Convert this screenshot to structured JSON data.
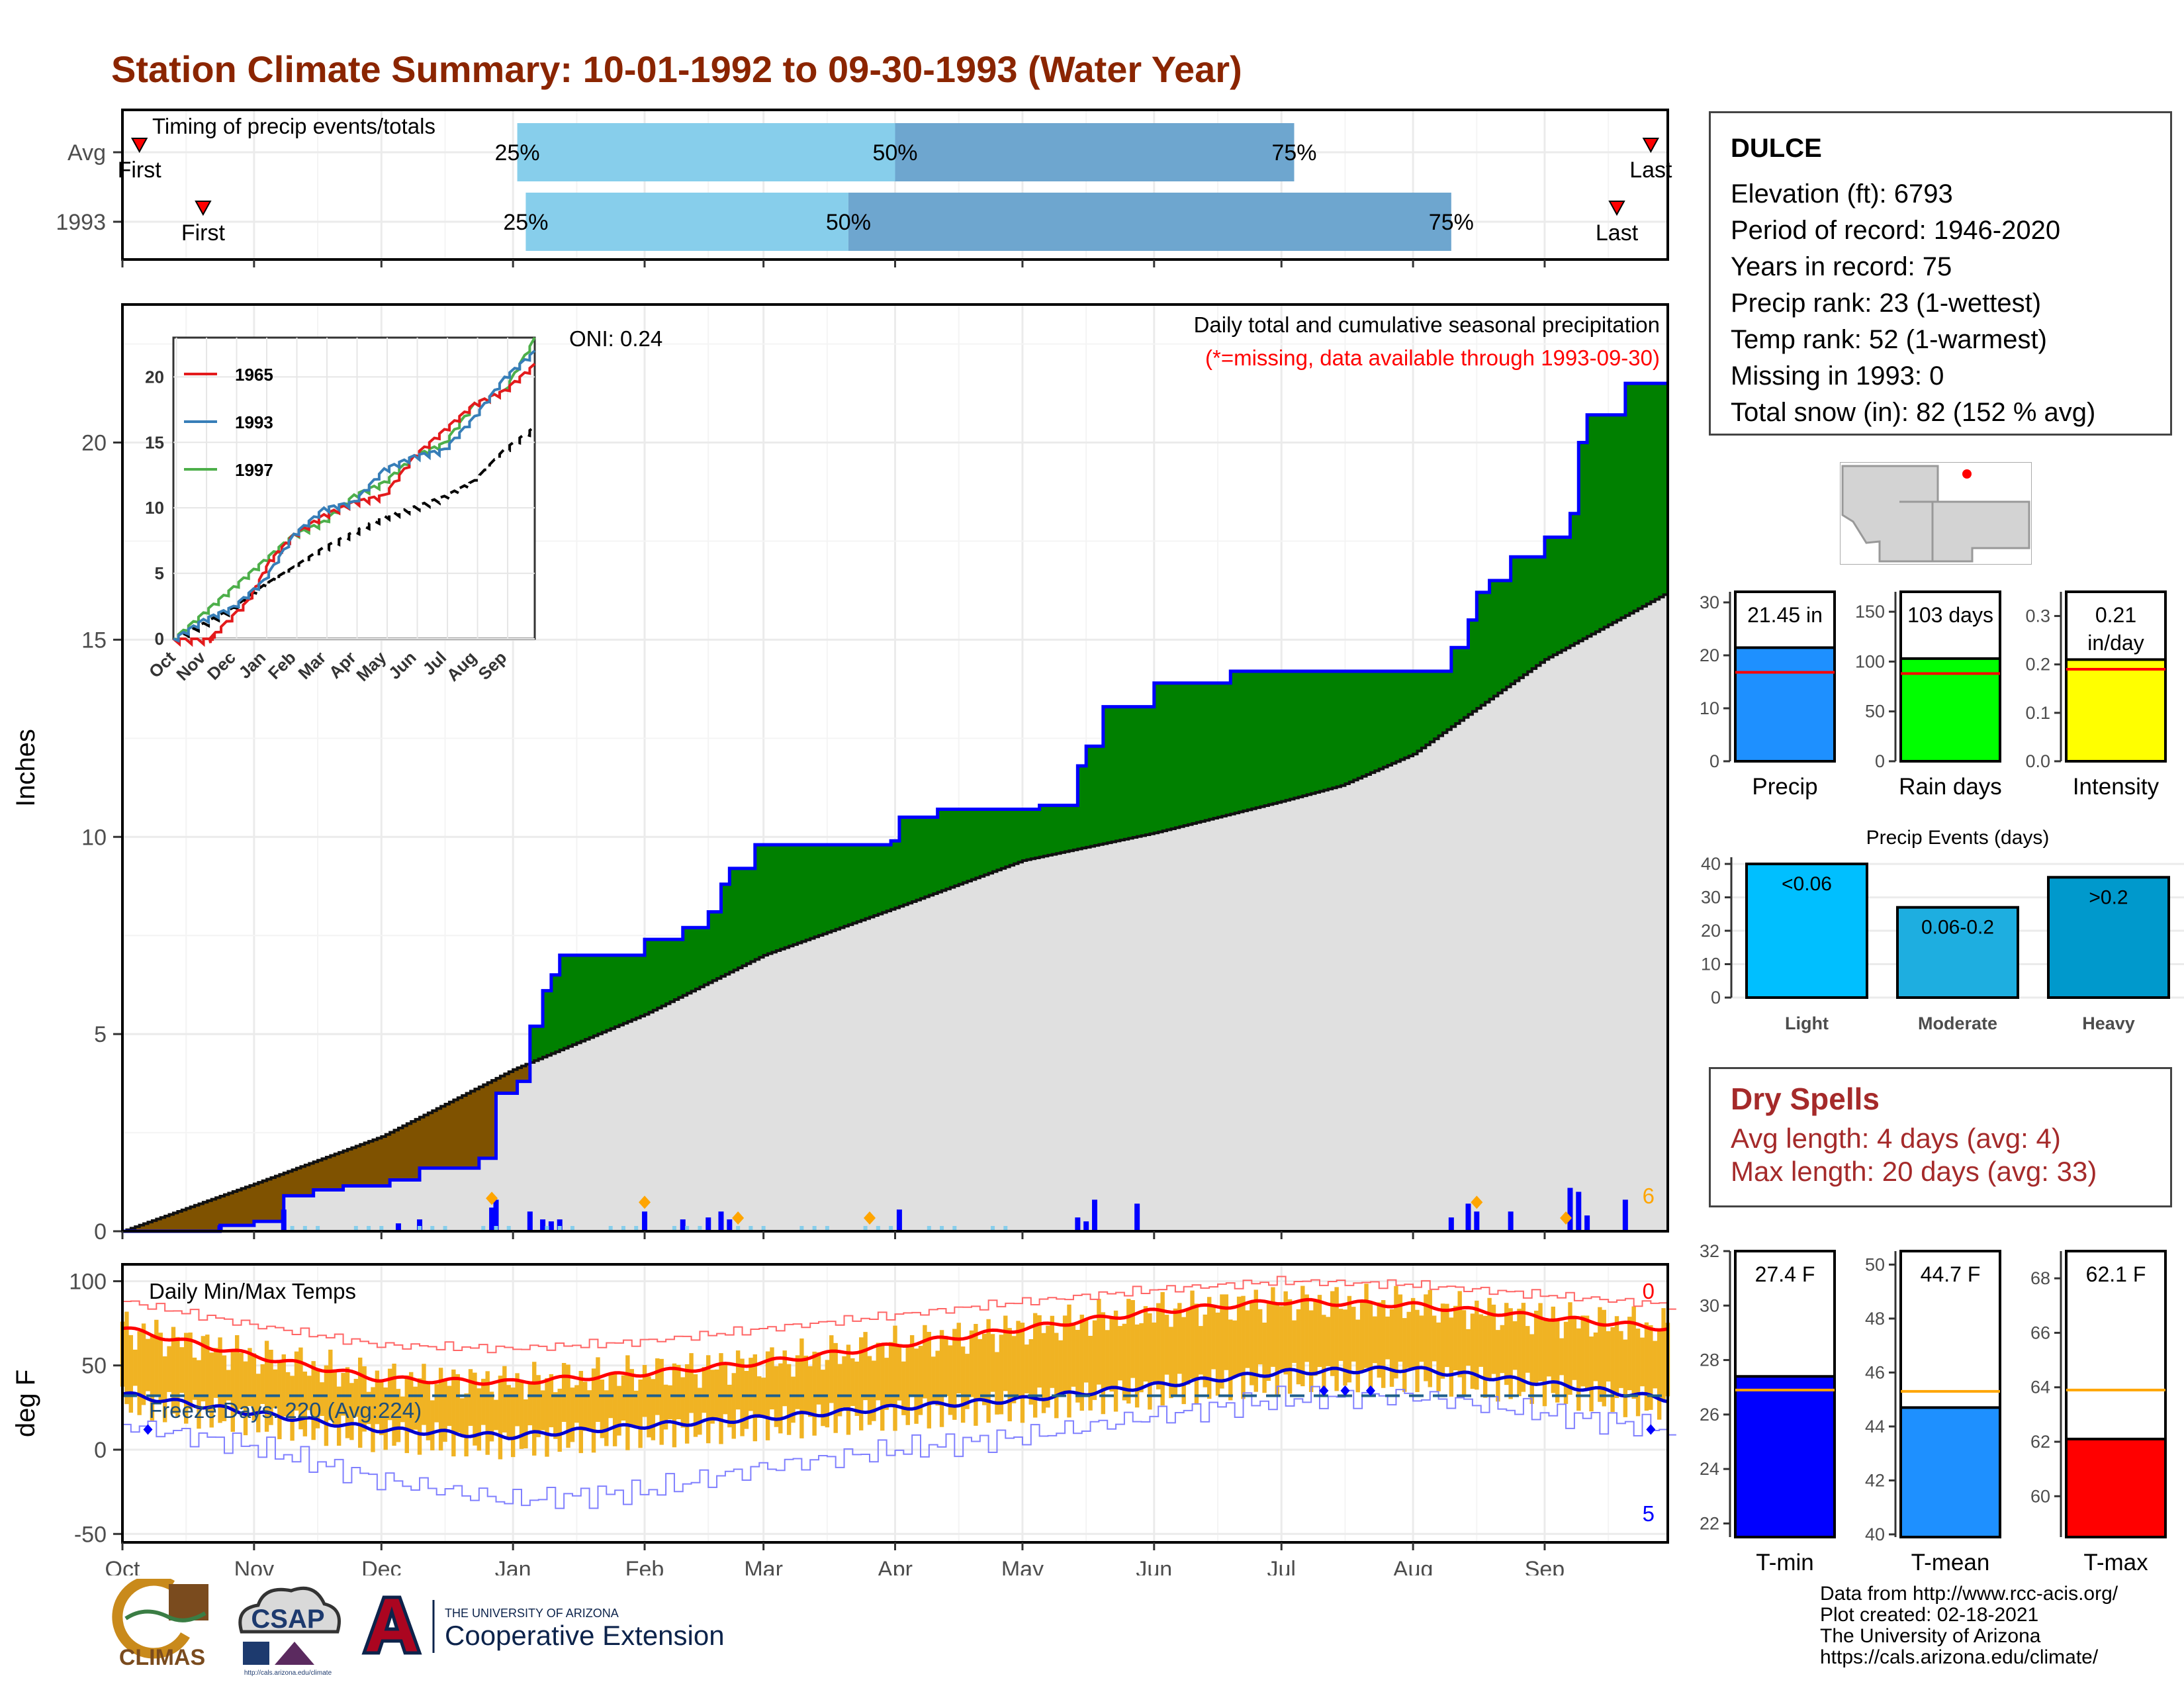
{
  "title": "Station Climate Summary: 10-01-1992 to 09-30-1993 (Water Year)",
  "station": {
    "name": "DULCE",
    "lines": [
      "Elevation (ft): 6793",
      "Period of record: 1946-2020",
      "Years in record: 75",
      "Precip rank: 23 (1-wettest)",
      "Temp rank: 52 (1-warmest)",
      "Missing in 1993: 0",
      "Total snow (in): 82 (152 % avg)"
    ]
  },
  "dry_spells": {
    "title": "Dry Spells",
    "avg": "Avg length: 4 days (avg: 4)",
    "max": "Max length: 20 days (avg: 33)"
  },
  "credits": [
    "Data from http://www.rcc-acis.org/",
    "Plot created: 02-18-2021",
    "The University of Arizona",
    "https://cals.arizona.edu/climate/"
  ],
  "logos": {
    "climas": "CLIMAS",
    "csap": "CSAP",
    "csap_url": "http://cals.arizona.edu/climate",
    "ua_small": "THE UNIVERSITY OF ARIZONA",
    "ua_big": "Cooperative Extension"
  },
  "colors": {
    "title": "#8b2500",
    "wet": "#008000",
    "dry": "#7f5200",
    "avg_fill": "#e0e0e0",
    "cum_line": "#0000ff",
    "tmax": "#ff0000",
    "tmin": "#0000cd",
    "temp_bar": "#f0b323",
    "timing_light": "#87ceeb",
    "timing_dark": "#6ea6cf"
  },
  "chart_data": [
    {
      "type": "timeline",
      "name": "timing",
      "title": "Timing of precip events/totals",
      "rows": [
        {
          "label": "Avg",
          "first": "10-05",
          "p25": "01-02",
          "p50": "04-01",
          "p75": "07-04",
          "last": "09-26"
        },
        {
          "label": "1993",
          "first": "10-20",
          "p25": "01-04",
          "p50": "03-21",
          "p75": "08-10",
          "last": "09-18"
        }
      ],
      "marker_labels": {
        "first": "First",
        "last": "Last",
        "p25": "25%",
        "p50": "50%",
        "p75": "75%"
      }
    },
    {
      "type": "area",
      "name": "cumulative_precip",
      "title": "Daily total and cumulative seasonal precipitation",
      "subtitle": "(*=missing, data available through 1993-09-30)",
      "oni": "ONI: 0.24",
      "ylabel": "Inches",
      "ylim": [
        0,
        23.5
      ],
      "yticks": [
        0,
        5,
        10,
        15,
        20
      ],
      "xlim": [
        "1992-10-01",
        "1993-09-30"
      ],
      "corner_count": "6",
      "cumulative_1993": [
        [
          "1992-10-01",
          0
        ],
        [
          "1992-10-24",
          0.15
        ],
        [
          "1992-11-01",
          0.25
        ],
        [
          "1992-11-08",
          0.9
        ],
        [
          "1992-11-15",
          1.05
        ],
        [
          "1992-11-22",
          1.15
        ],
        [
          "1992-12-03",
          1.3
        ],
        [
          "1992-12-10",
          1.6
        ],
        [
          "1992-12-24",
          1.85
        ],
        [
          "1992-12-28",
          3.5
        ],
        [
          "1993-01-02",
          3.8
        ],
        [
          "1993-01-05",
          5.2
        ],
        [
          "1993-01-08",
          6.1
        ],
        [
          "1993-01-10",
          6.5
        ],
        [
          "1993-01-12",
          7.0
        ],
        [
          "1993-01-31",
          7.0
        ],
        [
          "1993-02-01",
          7.4
        ],
        [
          "1993-02-10",
          7.7
        ],
        [
          "1993-02-16",
          8.1
        ],
        [
          "1993-02-19",
          8.8
        ],
        [
          "1993-02-21",
          9.2
        ],
        [
          "1993-02-27",
          9.8
        ],
        [
          "1993-03-31",
          9.9
        ],
        [
          "1993-04-02",
          10.5
        ],
        [
          "1993-04-11",
          10.7
        ],
        [
          "1993-05-05",
          10.8
        ],
        [
          "1993-05-14",
          11.8
        ],
        [
          "1993-05-16",
          12.3
        ],
        [
          "1993-05-20",
          13.3
        ],
        [
          "1993-06-01",
          13.9
        ],
        [
          "1993-06-19",
          14.2
        ],
        [
          "1993-08-06",
          14.2
        ],
        [
          "1993-08-10",
          14.8
        ],
        [
          "1993-08-14",
          15.5
        ],
        [
          "1993-08-16",
          16.2
        ],
        [
          "1993-08-19",
          16.5
        ],
        [
          "1993-08-24",
          17.1
        ],
        [
          "1993-09-01",
          17.6
        ],
        [
          "1993-09-07",
          18.2
        ],
        [
          "1993-09-09",
          20.0
        ],
        [
          "1993-09-11",
          20.7
        ],
        [
          "1993-09-20",
          21.5
        ],
        [
          "1993-09-30",
          21.5
        ]
      ],
      "cumulative_avg": [
        [
          "1992-10-01",
          0
        ],
        [
          "1992-11-01",
          1.2
        ],
        [
          "1992-12-01",
          2.4
        ],
        [
          "1993-01-01",
          4.1
        ],
        [
          "1993-02-01",
          5.5
        ],
        [
          "1993-03-01",
          7.0
        ],
        [
          "1993-04-01",
          8.2
        ],
        [
          "1993-05-01",
          9.4
        ],
        [
          "1993-06-01",
          10.1
        ],
        [
          "1993-07-01",
          10.9
        ],
        [
          "1993-07-15",
          11.3
        ],
        [
          "1993-08-01",
          12.1
        ],
        [
          "1993-09-01",
          14.5
        ],
        [
          "1993-09-30",
          16.2
        ]
      ],
      "daily_precip": [
        [
          "1992-10-24",
          0.15
        ],
        [
          "1992-11-08",
          0.55
        ],
        [
          "1992-12-05",
          0.2
        ],
        [
          "1992-12-10",
          0.3
        ],
        [
          "1992-12-27",
          0.6
        ],
        [
          "1992-12-28",
          0.8
        ],
        [
          "1993-01-05",
          0.5
        ],
        [
          "1993-01-08",
          0.3
        ],
        [
          "1993-01-10",
          0.25
        ],
        [
          "1993-01-12",
          0.3
        ],
        [
          "1993-02-01",
          0.5
        ],
        [
          "1993-02-10",
          0.3
        ],
        [
          "1993-02-16",
          0.35
        ],
        [
          "1993-02-19",
          0.5
        ],
        [
          "1993-02-21",
          0.3
        ],
        [
          "1993-04-02",
          0.55
        ],
        [
          "1993-05-14",
          0.35
        ],
        [
          "1993-05-16",
          0.25
        ],
        [
          "1993-05-18",
          0.8
        ],
        [
          "1993-05-28",
          0.7
        ],
        [
          "1993-08-10",
          0.35
        ],
        [
          "1993-08-14",
          0.7
        ],
        [
          "1993-08-16",
          0.5
        ],
        [
          "1993-08-24",
          0.5
        ],
        [
          "1993-09-07",
          1.1
        ],
        [
          "1993-09-09",
          1.0
        ],
        [
          "1993-09-11",
          0.4
        ],
        [
          "1993-09-20",
          0.8
        ]
      ],
      "record_markers": [
        "1992-12-27",
        "1993-02-01",
        "1993-02-23",
        "1993-03-26",
        "1993-08-16",
        "1993-09-06"
      ]
    },
    {
      "type": "line",
      "name": "cumulative_inset",
      "series": [
        {
          "name": "1965",
          "color": "#e31a1c"
        },
        {
          "name": "1993",
          "color": "#377eb8"
        },
        {
          "name": "1997",
          "color": "#4daf4a"
        }
      ],
      "ylim": [
        0,
        23
      ],
      "yticks": [
        0,
        5,
        10,
        15,
        20
      ],
      "xticks": [
        "Oct",
        "Nov",
        "Dec",
        "Jan",
        "Feb",
        "Mar",
        "Apr",
        "May",
        "Jun",
        "Jul",
        "Aug",
        "Sep"
      ],
      "series_1965": [
        [
          0,
          0
        ],
        [
          1.2,
          0
        ],
        [
          1.4,
          0.5
        ],
        [
          2.5,
          3
        ],
        [
          3.2,
          6
        ],
        [
          4,
          8
        ],
        [
          5,
          9.5
        ],
        [
          6,
          10.5
        ],
        [
          7,
          11
        ],
        [
          8,
          14
        ],
        [
          9,
          16
        ],
        [
          10,
          18
        ],
        [
          11,
          19
        ],
        [
          12,
          21
        ]
      ],
      "series_1993": [
        [
          0,
          0
        ],
        [
          1,
          1.5
        ],
        [
          2,
          2.5
        ],
        [
          3,
          4.5
        ],
        [
          4,
          8
        ],
        [
          5,
          10
        ],
        [
          6,
          10.5
        ],
        [
          7,
          13
        ],
        [
          8,
          14
        ],
        [
          9,
          14.5
        ],
        [
          10,
          17
        ],
        [
          11,
          20
        ],
        [
          12,
          22
        ]
      ],
      "series_1997": [
        [
          0,
          0
        ],
        [
          1,
          2
        ],
        [
          2,
          4
        ],
        [
          3,
          6
        ],
        [
          4,
          8
        ],
        [
          5,
          9
        ],
        [
          6,
          11
        ],
        [
          7,
          12
        ],
        [
          8,
          14
        ],
        [
          9,
          15
        ],
        [
          10,
          18
        ],
        [
          11,
          19
        ],
        [
          12,
          23
        ]
      ],
      "series_avg": [
        [
          0,
          0
        ],
        [
          1,
          1.2
        ],
        [
          2,
          2.4
        ],
        [
          3,
          4.1
        ],
        [
          4,
          5.5
        ],
        [
          5,
          7
        ],
        [
          6,
          8.2
        ],
        [
          7,
          9.4
        ],
        [
          8,
          10.1
        ],
        [
          9,
          10.9
        ],
        [
          10,
          12.1
        ],
        [
          11,
          14.5
        ],
        [
          12,
          16.2
        ]
      ]
    },
    {
      "type": "line",
      "name": "daily_temps",
      "title": "Daily Min/Max Temps",
      "ylabel": "deg F",
      "ylim": [
        -55,
        110
      ],
      "yticks": [
        -50,
        0,
        50,
        100
      ],
      "xticks": [
        "Oct",
        "Nov",
        "Dec",
        "Jan",
        "Feb",
        "Mar",
        "Apr",
        "May",
        "Jun",
        "Jul",
        "Aug",
        "Sep"
      ],
      "freeze_label": "Freeze Days: 220 (Avg:224)",
      "freeze_line": 32,
      "count_top": "0",
      "count_bottom": "5",
      "avg_max": [
        [
          0,
          72
        ],
        [
          1,
          56
        ],
        [
          2,
          42
        ],
        [
          3,
          40
        ],
        [
          4,
          45
        ],
        [
          5,
          52
        ],
        [
          6,
          62
        ],
        [
          7,
          72
        ],
        [
          8,
          82
        ],
        [
          9,
          88
        ],
        [
          10,
          86
        ],
        [
          11,
          79
        ],
        [
          12,
          72
        ]
      ],
      "avg_min": [
        [
          0,
          33
        ],
        [
          1,
          22
        ],
        [
          2,
          12
        ],
        [
          3,
          8
        ],
        [
          4,
          14
        ],
        [
          5,
          19
        ],
        [
          6,
          25
        ],
        [
          7,
          30
        ],
        [
          8,
          38
        ],
        [
          9,
          46
        ],
        [
          10,
          48
        ],
        [
          11,
          40
        ],
        [
          12,
          30
        ]
      ],
      "record_max": [
        [
          0,
          88
        ],
        [
          1,
          74
        ],
        [
          2,
          62
        ],
        [
          3,
          60
        ],
        [
          4,
          64
        ],
        [
          5,
          72
        ],
        [
          6,
          80
        ],
        [
          7,
          88
        ],
        [
          8,
          95
        ],
        [
          9,
          100
        ],
        [
          10,
          98
        ],
        [
          11,
          92
        ],
        [
          12,
          86
        ]
      ],
      "record_min": [
        [
          0,
          15
        ],
        [
          1,
          2
        ],
        [
          2,
          -18
        ],
        [
          3,
          -30
        ],
        [
          4,
          -25
        ],
        [
          5,
          -10
        ],
        [
          6,
          0
        ],
        [
          7,
          8
        ],
        [
          8,
          20
        ],
        [
          9,
          30
        ],
        [
          10,
          32
        ],
        [
          11,
          22
        ],
        [
          12,
          12
        ]
      ]
    },
    {
      "type": "bar",
      "name": "precip_summary",
      "panels": [
        {
          "label": "Precip",
          "value": 21.45,
          "avg": 16.8,
          "ylim": [
            0,
            32
          ],
          "yticks": [
            0,
            10,
            20,
            30
          ],
          "value_label": "21.45 in",
          "color": "#1e90ff"
        },
        {
          "label": "Rain days",
          "value": 103,
          "avg": 88,
          "ylim": [
            0,
            170
          ],
          "yticks": [
            0,
            50,
            100,
            150
          ],
          "value_label": "103 days",
          "color": "#00ff00"
        },
        {
          "label": "Intensity",
          "value": 0.21,
          "avg": 0.19,
          "ylim": [
            0,
            0.35
          ],
          "yticks": [
            0.0,
            0.1,
            0.2,
            0.3
          ],
          "value_label": "0.21 in/day",
          "color": "#ffff00"
        }
      ]
    },
    {
      "type": "bar",
      "name": "precip_events",
      "title": "Precip Events (days)",
      "categories": [
        "Light",
        "Moderate",
        "Heavy"
      ],
      "values": [
        40,
        27,
        36
      ],
      "bar_labels": [
        "<0.06",
        "0.06-0.2",
        ">0.2"
      ],
      "colors": [
        "#00bfff",
        "#1eaee0",
        "#0099cc"
      ],
      "ylim": [
        0,
        42
      ],
      "yticks": [
        0,
        10,
        20,
        30,
        40
      ]
    },
    {
      "type": "bar",
      "name": "temp_summary",
      "panels": [
        {
          "label": "T-min",
          "value": 27.4,
          "avg": 26.9,
          "ylim": [
            21.5,
            32
          ],
          "yticks": [
            22,
            24,
            26,
            28,
            30,
            32
          ],
          "value_label": "27.4 F",
          "color": "#0000ff"
        },
        {
          "label": "T-mean",
          "value": 44.7,
          "avg": 45.3,
          "ylim": [
            39.9,
            50.5
          ],
          "yticks": [
            40,
            42,
            44,
            46,
            48,
            50
          ],
          "value_label": "44.7 F",
          "color": "#1e90ff"
        },
        {
          "label": "T-max",
          "value": 62.1,
          "avg": 63.9,
          "ylim": [
            58.5,
            69
          ],
          "yticks": [
            60,
            62,
            64,
            66,
            68
          ],
          "value_label": "62.1 F",
          "color": "#ff0000"
        }
      ]
    }
  ]
}
